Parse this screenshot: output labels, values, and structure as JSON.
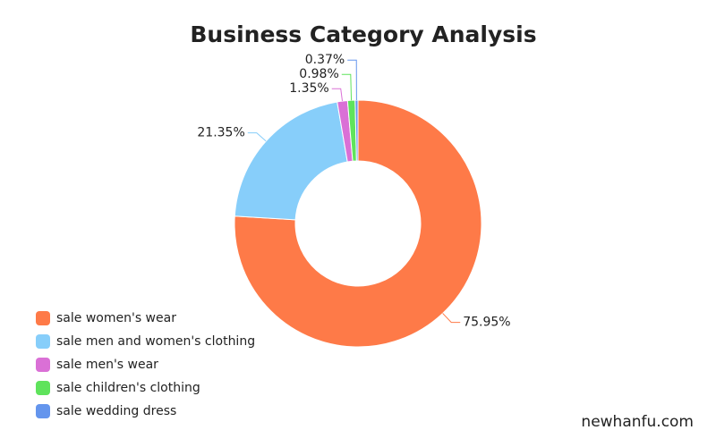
{
  "chart_data": {
    "type": "pie",
    "title": "Business Category Analysis",
    "categories": [
      "sale women's wear",
      "sale men and women's clothing",
      "sale men's wear",
      "sale children's clothing",
      "sale wedding dress"
    ],
    "values": [
      75.95,
      21.35,
      1.35,
      0.98,
      0.37
    ],
    "value_labels": [
      "75.95%",
      "21.35%",
      "1.35%",
      "0.98%",
      "0.37%"
    ],
    "colors": [
      "#fe7a48",
      "#87cefa",
      "#da70d6",
      "#5fe35c",
      "#6495ed"
    ],
    "legend": "bottom-left",
    "watermark": "newhanfu.com"
  }
}
